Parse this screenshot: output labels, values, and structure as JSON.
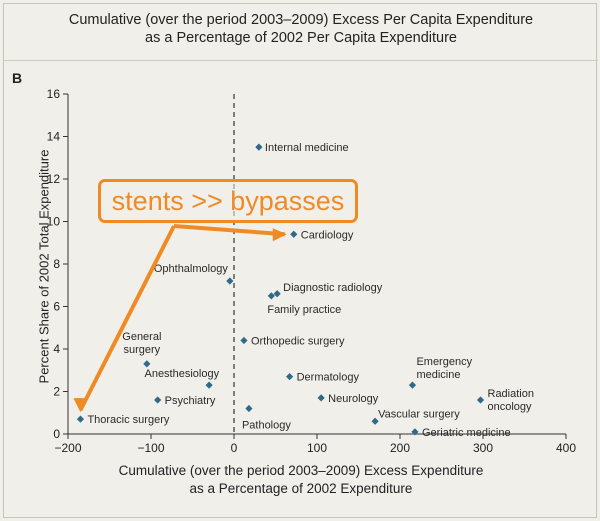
{
  "chart_data": {
    "type": "scatter",
    "title_lines": [
      "Cumulative (over the period 2003–2009) Excess Per Capita Expenditure",
      "as a Percentage of 2002 Per Capita Expenditure"
    ],
    "panel_label": "B",
    "xlabel_lines": [
      "Cumulative (over the period 2003–2009) Excess Expenditure",
      "as a Percentage of 2002 Expenditure"
    ],
    "ylabel": "Percent Share of 2002 Total Expenditure",
    "xlim": [
      -200,
      400
    ],
    "ylim": [
      0,
      16
    ],
    "xticks": [
      -200,
      -100,
      0,
      100,
      200,
      300,
      400
    ],
    "yticks": [
      0,
      2,
      4,
      6,
      8,
      10,
      12,
      14,
      16
    ],
    "reference_line_x": 0,
    "point_color": "#2e6b8a",
    "points": [
      {
        "label": "Internal medicine",
        "x": 30,
        "y": 13.5
      },
      {
        "label": "Cardiology",
        "x": 72,
        "y": 9.4
      },
      {
        "label": "Ophthalmology",
        "x": -5,
        "y": 7.2
      },
      {
        "label": "Diagnostic radiology",
        "x": 52,
        "y": 6.6
      },
      {
        "label": "Family practice",
        "x": 45,
        "y": 6.5
      },
      {
        "label": "Orthopedic surgery",
        "x": 12,
        "y": 4.4
      },
      {
        "label": "General surgery",
        "x": -105,
        "y": 3.3
      },
      {
        "label": "Anesthesiology",
        "x": -30,
        "y": 2.3
      },
      {
        "label": "Dermatology",
        "x": 67,
        "y": 2.7
      },
      {
        "label": "Emergency medicine",
        "x": 215,
        "y": 2.3
      },
      {
        "label": "Radiation oncology",
        "x": 297,
        "y": 1.6
      },
      {
        "label": "Psychiatry",
        "x": -92,
        "y": 1.6
      },
      {
        "label": "Neurology",
        "x": 105,
        "y": 1.7
      },
      {
        "label": "Thoracic surgery",
        "x": -185,
        "y": 0.7
      },
      {
        "label": "Pathology",
        "x": 18,
        "y": 1.2
      },
      {
        "label": "Vascular surgery",
        "x": 170,
        "y": 0.6
      },
      {
        "label": "Geriatric medicine",
        "x": 218,
        "y": 0.1
      }
    ]
  },
  "annotation": {
    "text": "stents >> bypasses",
    "color": "#f08a24",
    "from_point": "Thoracic surgery",
    "to_point": "Cardiology"
  }
}
